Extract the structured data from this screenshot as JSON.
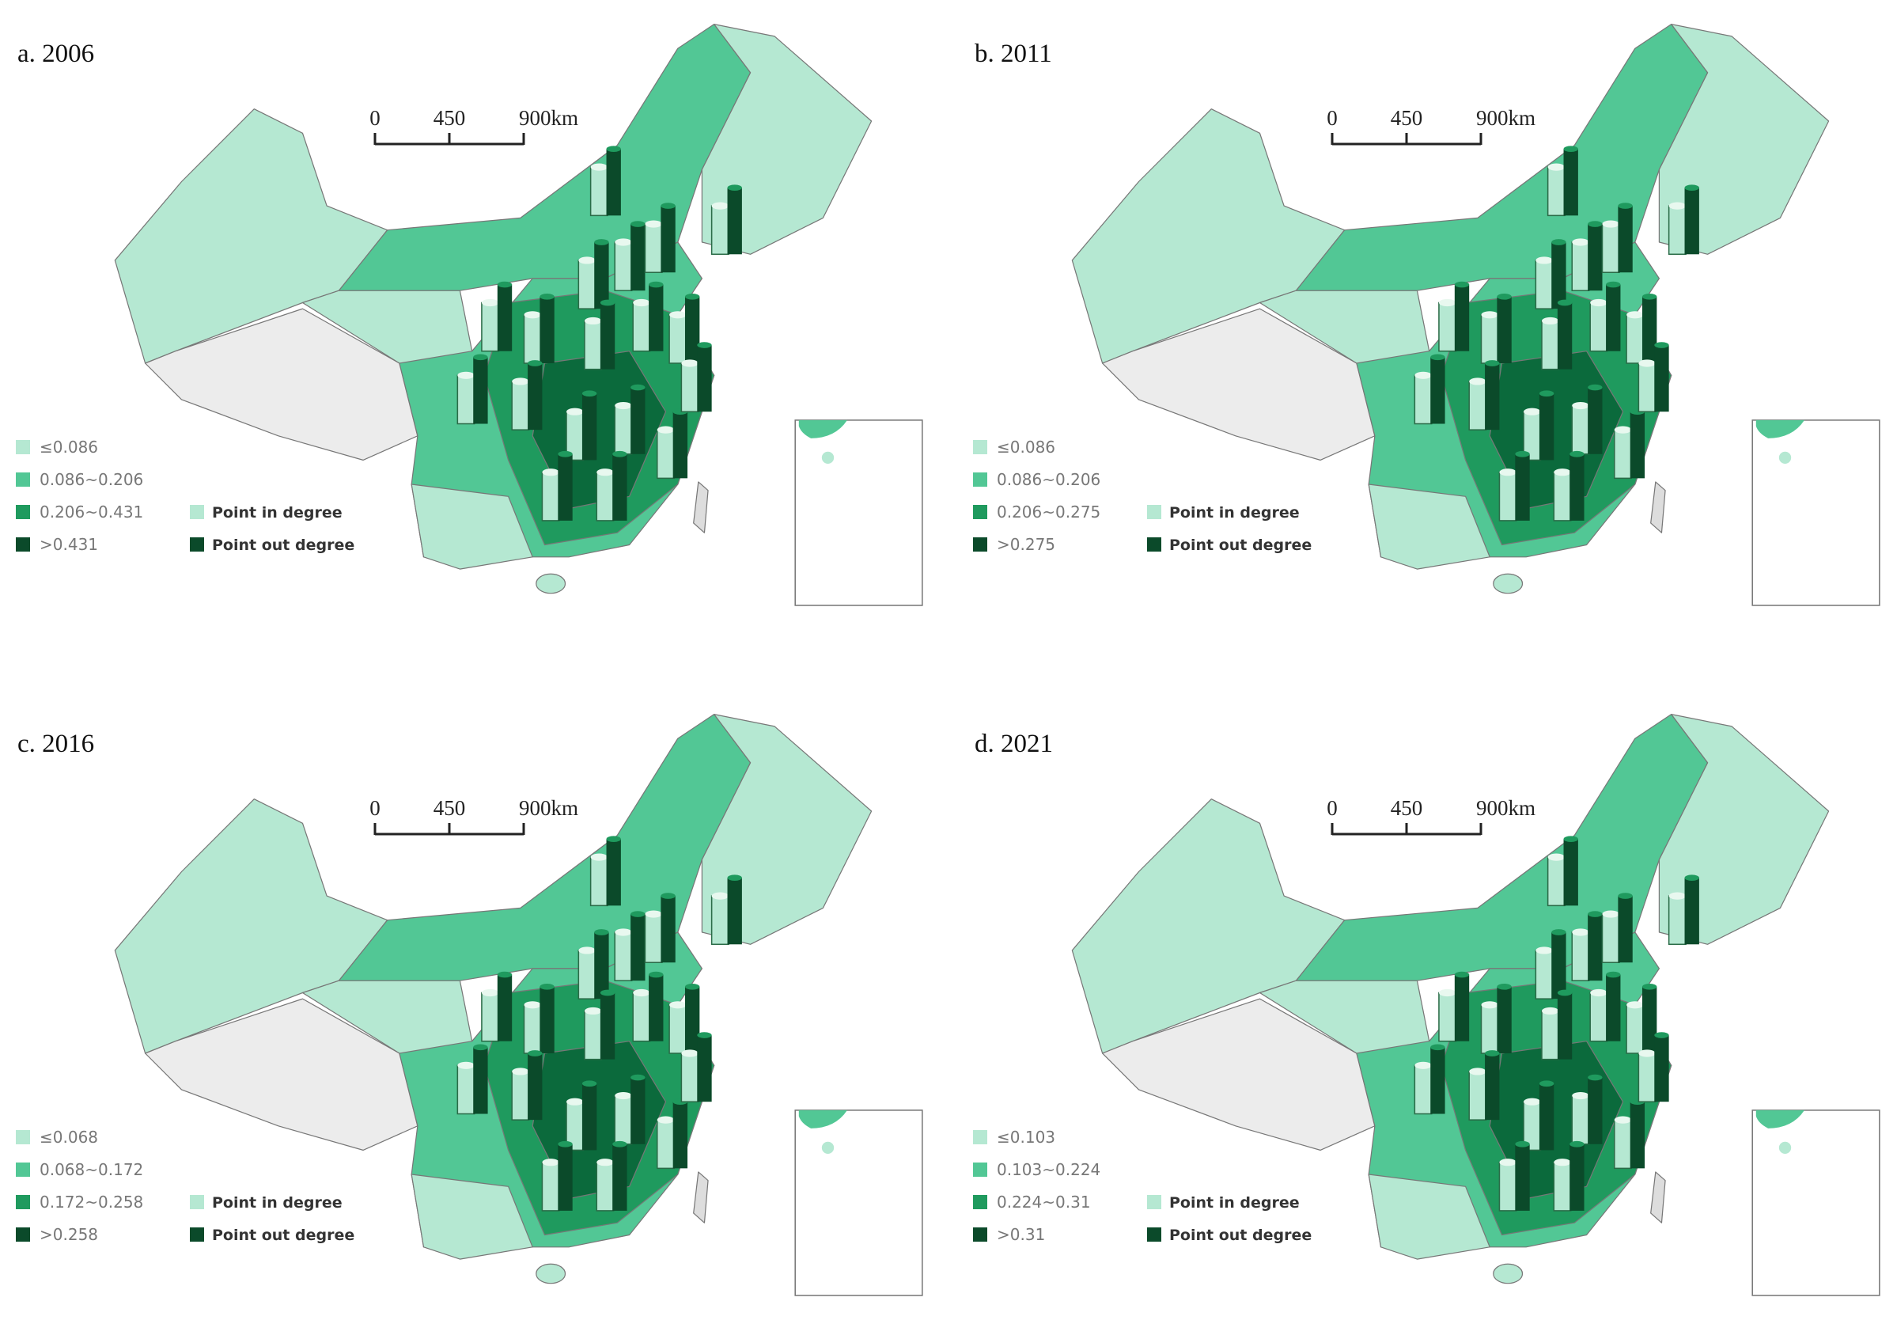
{
  "legend_colors": [
    "#b5e8d2",
    "#52c795",
    "#1f9a5e",
    "#0b4a2a"
  ],
  "point_colors": [
    "#b5e8d2",
    "#0b4a2a"
  ],
  "panels": [
    {
      "title": "a. 2006",
      "scale": [
        "0",
        "450",
        "900km"
      ],
      "legend": [
        "≤0.086",
        "0.086~0.206",
        "0.206~0.431",
        ">0.431"
      ],
      "points": [
        "Point in degree",
        "Point out degree"
      ]
    },
    {
      "title": "b. 2011",
      "scale": [
        "0",
        "450",
        "900km"
      ],
      "legend": [
        "≤0.086",
        "0.086~0.206",
        "0.206~0.275",
        ">0.275"
      ],
      "points": [
        "Point in degree",
        "Point out degree"
      ]
    },
    {
      "title": "c. 2016",
      "scale": [
        "0",
        "450",
        "900km"
      ],
      "legend": [
        "≤0.068",
        "0.068~0.172",
        "0.172~0.258",
        ">0.258"
      ],
      "points": [
        "Point in degree",
        "Point out degree"
      ]
    },
    {
      "title": "d. 2021",
      "scale": [
        "0",
        "450",
        "900km"
      ],
      "legend": [
        "≤0.103",
        "0.103~0.224",
        "0.224~0.31",
        ">0.31"
      ],
      "points": [
        "Point in degree",
        "Point out degree"
      ]
    }
  ]
}
